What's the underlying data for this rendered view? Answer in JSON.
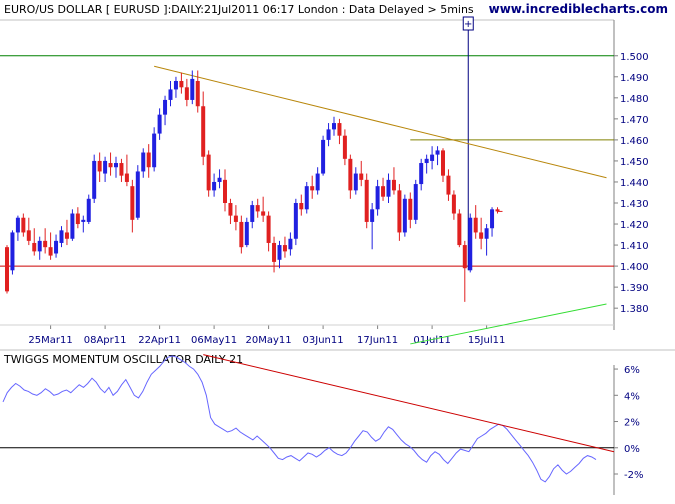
{
  "chart_data": [
    {
      "type": "candlestick",
      "title": "EURO/US DOLLAR [ EURUSD ]:DAILY:21Jul2011 06:17 London : Data Delayed > 5mins",
      "watermark": "www.incrediblecharts.com",
      "y_ticks": [
        "1.380",
        "1.390",
        "1.400",
        "1.410",
        "1.420",
        "1.430",
        "1.440",
        "1.450",
        "1.460",
        "1.470",
        "1.480",
        "1.490",
        "1.500"
      ],
      "ylim": [
        1.372,
        1.517
      ],
      "x_ticks": [
        {
          "label": "25Mar11",
          "index": 8
        },
        {
          "label": "08Apr11",
          "index": 18
        },
        {
          "label": "22Apr11",
          "index": 28
        },
        {
          "label": "06May11",
          "index": 38
        },
        {
          "label": "20May11",
          "index": 48
        },
        {
          "label": "03Jun11",
          "index": 58
        },
        {
          "label": "17Jun11",
          "index": 68
        },
        {
          "label": "01Jul11",
          "index": 78
        },
        {
          "label": "15Jul11",
          "index": 88
        }
      ],
      "candles": [
        {
          "o": 1.409,
          "h": 1.41,
          "l": 1.387,
          "c": 1.388
        },
        {
          "o": 1.398,
          "h": 1.417,
          "l": 1.396,
          "c": 1.416
        },
        {
          "o": 1.416,
          "h": 1.424,
          "l": 1.412,
          "c": 1.423
        },
        {
          "o": 1.423,
          "h": 1.425,
          "l": 1.414,
          "c": 1.416
        },
        {
          "o": 1.417,
          "h": 1.423,
          "l": 1.41,
          "c": 1.412
        },
        {
          "o": 1.411,
          "h": 1.418,
          "l": 1.405,
          "c": 1.407
        },
        {
          "o": 1.407,
          "h": 1.414,
          "l": 1.403,
          "c": 1.412
        },
        {
          "o": 1.412,
          "h": 1.418,
          "l": 1.406,
          "c": 1.409
        },
        {
          "o": 1.409,
          "h": 1.416,
          "l": 1.403,
          "c": 1.405
        },
        {
          "o": 1.406,
          "h": 1.415,
          "l": 1.404,
          "c": 1.412
        },
        {
          "o": 1.411,
          "h": 1.419,
          "l": 1.409,
          "c": 1.417
        },
        {
          "o": 1.416,
          "h": 1.422,
          "l": 1.41,
          "c": 1.413
        },
        {
          "o": 1.413,
          "h": 1.427,
          "l": 1.412,
          "c": 1.425
        },
        {
          "o": 1.425,
          "h": 1.428,
          "l": 1.418,
          "c": 1.42
        },
        {
          "o": 1.421,
          "h": 1.424,
          "l": 1.416,
          "c": 1.422
        },
        {
          "o": 1.421,
          "h": 1.434,
          "l": 1.42,
          "c": 1.432
        },
        {
          "o": 1.432,
          "h": 1.453,
          "l": 1.43,
          "c": 1.45
        },
        {
          "o": 1.45,
          "h": 1.454,
          "l": 1.44,
          "c": 1.445
        },
        {
          "o": 1.444,
          "h": 1.452,
          "l": 1.44,
          "c": 1.45
        },
        {
          "o": 1.449,
          "h": 1.454,
          "l": 1.443,
          "c": 1.447
        },
        {
          "o": 1.447,
          "h": 1.452,
          "l": 1.442,
          "c": 1.449
        },
        {
          "o": 1.449,
          "h": 1.451,
          "l": 1.44,
          "c": 1.443
        },
        {
          "o": 1.444,
          "h": 1.453,
          "l": 1.438,
          "c": 1.44
        },
        {
          "o": 1.438,
          "h": 1.441,
          "l": 1.416,
          "c": 1.422
        },
        {
          "o": 1.423,
          "h": 1.448,
          "l": 1.422,
          "c": 1.445
        },
        {
          "o": 1.445,
          "h": 1.456,
          "l": 1.442,
          "c": 1.454
        },
        {
          "o": 1.454,
          "h": 1.458,
          "l": 1.442,
          "c": 1.447
        },
        {
          "o": 1.447,
          "h": 1.466,
          "l": 1.445,
          "c": 1.463
        },
        {
          "o": 1.463,
          "h": 1.475,
          "l": 1.46,
          "c": 1.472
        },
        {
          "o": 1.472,
          "h": 1.481,
          "l": 1.467,
          "c": 1.479
        },
        {
          "o": 1.479,
          "h": 1.488,
          "l": 1.476,
          "c": 1.484
        },
        {
          "o": 1.484,
          "h": 1.49,
          "l": 1.48,
          "c": 1.488
        },
        {
          "o": 1.488,
          "h": 1.492,
          "l": 1.482,
          "c": 1.485
        },
        {
          "o": 1.485,
          "h": 1.489,
          "l": 1.476,
          "c": 1.479
        },
        {
          "o": 1.479,
          "h": 1.493,
          "l": 1.477,
          "c": 1.489
        },
        {
          "o": 1.488,
          "h": 1.493,
          "l": 1.473,
          "c": 1.476
        },
        {
          "o": 1.476,
          "h": 1.483,
          "l": 1.448,
          "c": 1.452
        },
        {
          "o": 1.453,
          "h": 1.455,
          "l": 1.433,
          "c": 1.436
        },
        {
          "o": 1.436,
          "h": 1.444,
          "l": 1.433,
          "c": 1.44
        },
        {
          "o": 1.44,
          "h": 1.446,
          "l": 1.437,
          "c": 1.442
        },
        {
          "o": 1.441,
          "h": 1.446,
          "l": 1.426,
          "c": 1.43
        },
        {
          "o": 1.43,
          "h": 1.432,
          "l": 1.42,
          "c": 1.424
        },
        {
          "o": 1.424,
          "h": 1.429,
          "l": 1.417,
          "c": 1.421
        },
        {
          "o": 1.421,
          "h": 1.424,
          "l": 1.406,
          "c": 1.409
        },
        {
          "o": 1.41,
          "h": 1.423,
          "l": 1.409,
          "c": 1.421
        },
        {
          "o": 1.421,
          "h": 1.431,
          "l": 1.418,
          "c": 1.429
        },
        {
          "o": 1.429,
          "h": 1.432,
          "l": 1.423,
          "c": 1.426
        },
        {
          "o": 1.426,
          "h": 1.433,
          "l": 1.421,
          "c": 1.424
        },
        {
          "o": 1.424,
          "h": 1.426,
          "l": 1.407,
          "c": 1.411
        },
        {
          "o": 1.411,
          "h": 1.414,
          "l": 1.397,
          "c": 1.402
        },
        {
          "o": 1.403,
          "h": 1.412,
          "l": 1.399,
          "c": 1.41
        },
        {
          "o": 1.41,
          "h": 1.414,
          "l": 1.404,
          "c": 1.407
        },
        {
          "o": 1.408,
          "h": 1.416,
          "l": 1.405,
          "c": 1.413
        },
        {
          "o": 1.413,
          "h": 1.432,
          "l": 1.41,
          "c": 1.43
        },
        {
          "o": 1.43,
          "h": 1.434,
          "l": 1.424,
          "c": 1.427
        },
        {
          "o": 1.427,
          "h": 1.44,
          "l": 1.425,
          "c": 1.438
        },
        {
          "o": 1.438,
          "h": 1.443,
          "l": 1.432,
          "c": 1.436
        },
        {
          "o": 1.436,
          "h": 1.447,
          "l": 1.434,
          "c": 1.444
        },
        {
          "o": 1.444,
          "h": 1.462,
          "l": 1.443,
          "c": 1.46
        },
        {
          "o": 1.46,
          "h": 1.468,
          "l": 1.457,
          "c": 1.465
        },
        {
          "o": 1.465,
          "h": 1.471,
          "l": 1.462,
          "c": 1.468
        },
        {
          "o": 1.468,
          "h": 1.47,
          "l": 1.458,
          "c": 1.462
        },
        {
          "o": 1.462,
          "h": 1.465,
          "l": 1.448,
          "c": 1.451
        },
        {
          "o": 1.451,
          "h": 1.453,
          "l": 1.432,
          "c": 1.436
        },
        {
          "o": 1.436,
          "h": 1.447,
          "l": 1.434,
          "c": 1.444
        },
        {
          "o": 1.444,
          "h": 1.45,
          "l": 1.438,
          "c": 1.441
        },
        {
          "o": 1.441,
          "h": 1.444,
          "l": 1.418,
          "c": 1.421
        },
        {
          "o": 1.421,
          "h": 1.43,
          "l": 1.408,
          "c": 1.427
        },
        {
          "o": 1.427,
          "h": 1.441,
          "l": 1.424,
          "c": 1.438
        },
        {
          "o": 1.438,
          "h": 1.442,
          "l": 1.431,
          "c": 1.433
        },
        {
          "o": 1.433,
          "h": 1.444,
          "l": 1.43,
          "c": 1.441
        },
        {
          "o": 1.441,
          "h": 1.447,
          "l": 1.434,
          "c": 1.436
        },
        {
          "o": 1.436,
          "h": 1.439,
          "l": 1.412,
          "c": 1.416
        },
        {
          "o": 1.416,
          "h": 1.434,
          "l": 1.414,
          "c": 1.432
        },
        {
          "o": 1.432,
          "h": 1.435,
          "l": 1.418,
          "c": 1.422
        },
        {
          "o": 1.422,
          "h": 1.441,
          "l": 1.42,
          "c": 1.439
        },
        {
          "o": 1.439,
          "h": 1.451,
          "l": 1.436,
          "c": 1.449
        },
        {
          "o": 1.449,
          "h": 1.453,
          "l": 1.444,
          "c": 1.451
        },
        {
          "o": 1.45,
          "h": 1.457,
          "l": 1.446,
          "c": 1.453
        },
        {
          "o": 1.453,
          "h": 1.457,
          "l": 1.448,
          "c": 1.455
        },
        {
          "o": 1.455,
          "h": 1.456,
          "l": 1.44,
          "c": 1.443
        },
        {
          "o": 1.443,
          "h": 1.446,
          "l": 1.431,
          "c": 1.434
        },
        {
          "o": 1.434,
          "h": 1.436,
          "l": 1.422,
          "c": 1.425
        },
        {
          "o": 1.425,
          "h": 1.427,
          "l": 1.409,
          "c": 1.41
        },
        {
          "o": 1.41,
          "h": 1.412,
          "l": 1.383,
          "c": 1.399
        },
        {
          "o": 1.398,
          "h": 1.425,
          "l": 1.397,
          "c": 1.423
        },
        {
          "o": 1.423,
          "h": 1.429,
          "l": 1.413,
          "c": 1.416
        },
        {
          "o": 1.416,
          "h": 1.423,
          "l": 1.408,
          "c": 1.413
        },
        {
          "o": 1.413,
          "h": 1.42,
          "l": 1.405,
          "c": 1.418
        },
        {
          "o": 1.418,
          "h": 1.428,
          "l": 1.414,
          "c": 1.427
        },
        {
          "o": 1.427,
          "h": 1.428,
          "l": 1.425,
          "c": 1.426
        }
      ],
      "horizontal_lines": [
        {
          "y": 1.5,
          "color": "#008000"
        },
        {
          "y": 1.46,
          "color": "#808000"
        },
        {
          "y": 1.4,
          "color": "#cc0000"
        }
      ],
      "trend_lines": [
        {
          "from": {
            "index": 27,
            "y": 1.495
          },
          "to": {
            "index": 110,
            "y": 1.442
          },
          "color": "#b8860b"
        },
        {
          "from": {
            "index": 74,
            "y": 1.363
          },
          "to": {
            "index": 110,
            "y": 1.382
          },
          "color": "#33dd33"
        }
      ],
      "spike_marker": {
        "index": 85,
        "label": "+",
        "color": "#000080"
      }
    },
    {
      "type": "line",
      "title": "TWIGGS MOMENTUM OSCILLATOR DAILY 21",
      "y_ticks": [
        "6%",
        "4%",
        "2%",
        "0%",
        "-2%"
      ],
      "ylim": [
        -3.6,
        7.3
      ],
      "series": [
        {
          "color": "#6666ff",
          "values": [
            3.5,
            4.2,
            4.6,
            4.9,
            4.7,
            4.4,
            4.3,
            4.1,
            4.0,
            4.2,
            4.5,
            4.3,
            4.0,
            4.1,
            4.3,
            4.4,
            4.2,
            4.5,
            4.8,
            4.6,
            4.9,
            5.3,
            5.0,
            4.5,
            4.2,
            4.6,
            4.0,
            4.3,
            4.8,
            5.2,
            4.6,
            4.0,
            3.8,
            4.3,
            5.0,
            5.6,
            5.9,
            6.2,
            6.6,
            6.9,
            7.0,
            6.9,
            6.7,
            6.5,
            6.2,
            6.0,
            5.6,
            5.0,
            4.0,
            2.3,
            1.8,
            1.6,
            1.4,
            1.2,
            1.3,
            1.5,
            1.2,
            1.0,
            0.8,
            0.6,
            0.9,
            0.6,
            0.3,
            0.0,
            -0.4,
            -0.8,
            -0.9,
            -0.7,
            -0.6,
            -0.8,
            -1.0,
            -0.7,
            -0.4,
            -0.5,
            -0.7,
            -0.5,
            -0.2,
            0.0,
            -0.3,
            -0.5,
            -0.6,
            -0.4,
            0.0,
            0.5,
            0.9,
            1.3,
            1.2,
            0.8,
            0.5,
            0.7,
            1.2,
            1.6,
            1.4,
            1.0,
            0.6,
            0.3,
            0.1,
            -0.2,
            -0.6,
            -0.9,
            -1.1,
            -0.6,
            -0.3,
            -0.5,
            -0.9,
            -1.2,
            -0.8,
            -0.4,
            -0.1,
            -0.2,
            -0.3,
            0.2,
            0.7,
            0.9,
            1.1,
            1.4,
            1.6,
            1.8,
            1.7,
            1.4,
            1.0,
            0.6,
            0.2,
            -0.2,
            -0.6,
            -1.1,
            -1.7,
            -2.4,
            -2.6,
            -2.2,
            -1.6,
            -1.3,
            -1.7,
            -2.0,
            -1.8,
            -1.5,
            -1.2,
            -0.8,
            -0.6,
            -0.7,
            -0.9
          ]
        }
      ],
      "zero_line": 0,
      "trend_line": {
        "from": {
          "fraction": 0.33,
          "y": 7.1
        },
        "to": {
          "fraction": 1.0,
          "y": -0.3
        },
        "color": "#cc0000"
      }
    }
  ]
}
